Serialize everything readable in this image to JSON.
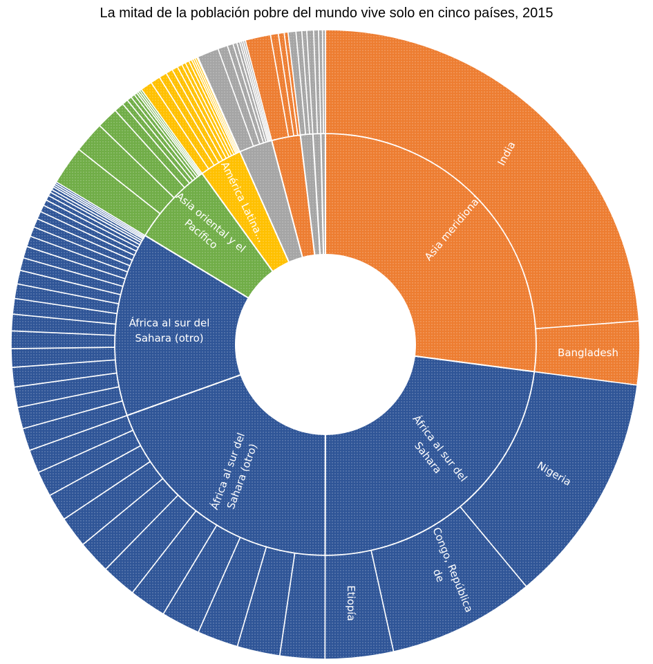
{
  "chart_data": {
    "type": "sunburst",
    "title": "La mitad de la población pobre del mundo vive solo en cinco países, 2015",
    "unit_note": "",
    "groups": [
      {
        "label_lines": [
          "Asia meridional"
        ],
        "color": "#ED7D31",
        "children": [
          {
            "label_lines": [
              "India"
            ],
            "value": 23.8
          },
          {
            "label_lines": [
              "Bangladesh"
            ],
            "value": 3.25
          }
        ]
      },
      {
        "label_lines": [
          "África al sur del",
          "Sahara"
        ],
        "color": "#2F5597",
        "children": [
          {
            "label_lines": [
              "Nigeria"
            ],
            "value": 11.9
          },
          {
            "label_lines": [
              "Congo, República",
              "de"
            ],
            "value": 7.55
          },
          {
            "label_lines": [
              "Etiopía"
            ],
            "value": 3.5
          }
        ]
      },
      {
        "label_lines": [
          "África al sur del",
          "Sahara (otro)"
        ],
        "color": "#2F5597",
        "children": [
          {
            "value": 2.3
          },
          {
            "value": 2.2
          },
          {
            "value": 2.1
          },
          {
            "value": 2.0
          },
          {
            "value": 1.9
          },
          {
            "value": 1.8
          },
          {
            "value": 1.7
          },
          {
            "value": 1.6
          },
          {
            "value": 1.4
          },
          {
            "value": 1.3
          },
          {
            "value": 1.2
          }
        ]
      },
      {
        "label_lines": [
          "África al sur del",
          "Sahara (otro)"
        ],
        "color": "#2F5597",
        "children": [
          {
            "value": 1.15
          },
          {
            "value": 1.1
          },
          {
            "value": 1.05
          },
          {
            "value": 1.0
          },
          {
            "value": 0.95
          },
          {
            "value": 0.9
          },
          {
            "value": 0.85
          },
          {
            "value": 0.8
          },
          {
            "value": 0.75
          },
          {
            "value": 0.7
          },
          {
            "value": 0.65
          },
          {
            "value": 0.6
          },
          {
            "value": 0.55
          },
          {
            "value": 0.5
          },
          {
            "value": 0.45
          },
          {
            "value": 0.4
          },
          {
            "value": 0.35
          },
          {
            "value": 0.3
          },
          {
            "value": 0.25
          },
          {
            "value": 0.2
          },
          {
            "value": 0.15
          },
          {
            "value": 0.15
          },
          {
            "value": 0.1
          },
          {
            "value": 0.1
          },
          {
            "value": 0.1
          }
        ]
      },
      {
        "label_lines": [
          "Asia oriental y el",
          "Pacífico"
        ],
        "color": "#70AD47",
        "children": [
          {
            "value": 2.0
          },
          {
            "value": 1.6
          },
          {
            "value": 1.1
          },
          {
            "value": 0.5
          },
          {
            "value": 0.3
          },
          {
            "value": 0.25
          },
          {
            "value": 0.2
          },
          {
            "value": 0.15
          },
          {
            "value": 0.1
          },
          {
            "value": 0.1
          },
          {
            "value": 0.1
          }
        ]
      },
      {
        "label_lines": [
          "América Latina..."
        ],
        "color": "#FFC000",
        "children": [
          {
            "value": 0.6
          },
          {
            "value": 0.5
          },
          {
            "value": 0.4
          },
          {
            "value": 0.35
          },
          {
            "value": 0.3
          },
          {
            "value": 0.25
          },
          {
            "value": 0.2
          },
          {
            "value": 0.2
          },
          {
            "value": 0.15
          },
          {
            "value": 0.1
          },
          {
            "value": 0.1
          },
          {
            "value": 0.1
          },
          {
            "value": 0.05
          }
        ]
      },
      {
        "color": "#A5A5A5",
        "children": [
          {
            "value": 1.1
          },
          {
            "value": 0.5
          },
          {
            "value": 0.3
          },
          {
            "value": 0.2
          },
          {
            "value": 0.15
          },
          {
            "value": 0.1
          },
          {
            "value": 0.1
          },
          {
            "value": 0.1
          }
        ]
      },
      {
        "color": "#ED7D31",
        "children": [
          {
            "value": 1.3
          },
          {
            "value": 0.4
          },
          {
            "value": 0.3
          },
          {
            "value": 0.2
          }
        ]
      },
      {
        "color": "#A5A5A5",
        "children": [
          {
            "value": 0.4
          },
          {
            "value": 0.3
          },
          {
            "value": 0.25
          }
        ]
      },
      {
        "color": "#A5A5A5",
        "children": [
          {
            "value": 0.35
          },
          {
            "value": 0.25
          }
        ]
      },
      {
        "color": "#A5A5A5",
        "children": [
          {
            "value": 0.2
          },
          {
            "value": 0.15
          }
        ]
      }
    ]
  }
}
